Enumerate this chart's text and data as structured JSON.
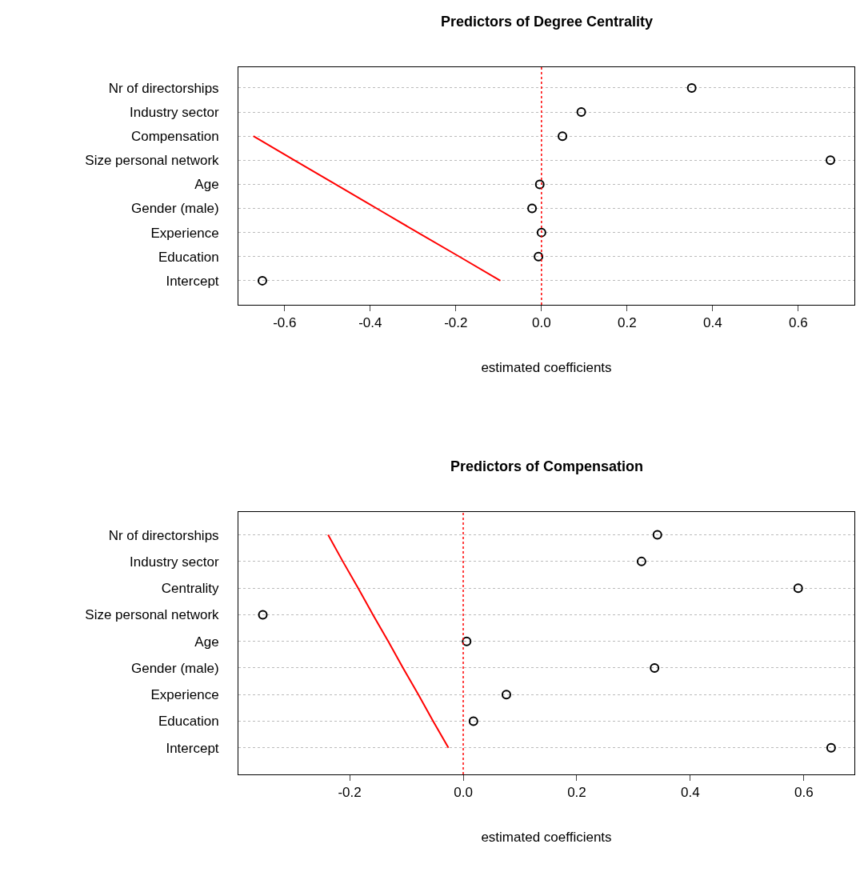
{
  "chart_data": [
    {
      "type": "scatter",
      "orientation": "horizontal",
      "title": "Predictors of Degree Centrality",
      "xlabel": "estimated coefficients",
      "xlim": [
        -0.708,
        0.731
      ],
      "xticks": [
        -0.6,
        -0.4,
        -0.2,
        {
          "value": 0,
          "label": "0.0"
        },
        0.2,
        0.4,
        0.6
      ],
      "categories": [
        "Nr of directorships",
        "Industry sector",
        "Compensation",
        "Size personal network",
        "Age",
        "Gender (male)",
        "Experience",
        "Education",
        "Intercept"
      ],
      "grid": "y",
      "ref_lines": [
        {
          "axis": "x",
          "value": 0,
          "color": "#ff0000",
          "line_style": "dotted"
        }
      ],
      "series": [
        {
          "color": "#000000",
          "marker": "circle",
          "values": [
            0.351,
            0.093,
            0.049,
            0.675,
            -0.004,
            -0.022,
            0.0,
            -0.007,
            -0.652
          ]
        },
        {
          "type": "line",
          "color": "#ff0000",
          "marker": "none",
          "values": [
            null,
            null,
            -0.673,
            -0.577,
            -0.481,
            -0.385,
            -0.289,
            -0.192,
            -0.096
          ]
        }
      ]
    },
    {
      "type": "scatter",
      "orientation": "horizontal",
      "title": "Predictors of Compensation",
      "xlabel": "estimated coefficients",
      "xlim": [
        -0.396,
        0.689
      ],
      "xticks": [
        -0.2,
        {
          "value": 0,
          "label": "0.0"
        },
        0.2,
        0.4,
        0.6
      ],
      "categories": [
        "Nr of directorships",
        "Industry sector",
        "Centrality",
        "Size personal network",
        "Age",
        "Gender (male)",
        "Experience",
        "Education",
        "Intercept"
      ],
      "grid": "y",
      "ref_lines": [
        {
          "axis": "x",
          "value": 0,
          "color": "#ff0000",
          "line_style": "dotted"
        }
      ],
      "series": [
        {
          "color": "#000000",
          "marker": "circle",
          "values": [
            0.342,
            0.314,
            0.59,
            -0.353,
            0.006,
            0.337,
            0.076,
            0.018,
            0.648
          ]
        },
        {
          "type": "line",
          "color": "#ff0000",
          "marker": "none",
          "values": [
            -0.238,
            -0.212,
            -0.185,
            -0.159,
            -0.132,
            -0.106,
            -0.079,
            -0.053,
            -0.026
          ]
        }
      ]
    }
  ]
}
